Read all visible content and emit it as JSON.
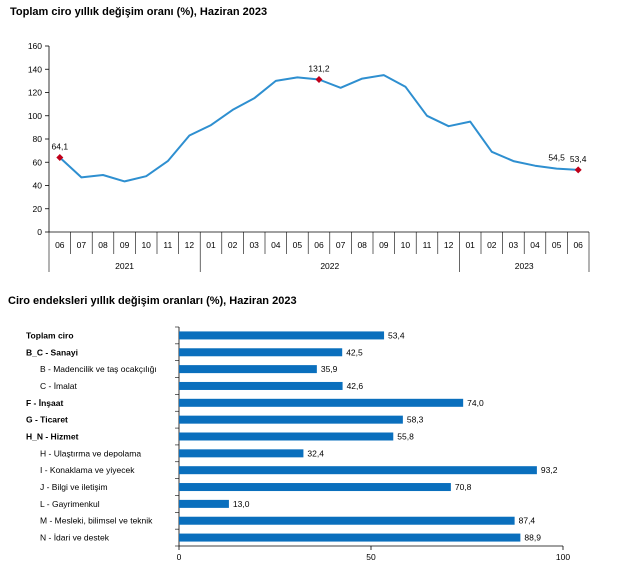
{
  "chart_data": [
    {
      "type": "line",
      "title": "Toplam ciro yıllık değişim oranı (%), Haziran 2023",
      "ylim": [
        0,
        160
      ],
      "yticks": [
        0,
        20,
        40,
        60,
        80,
        100,
        120,
        140,
        160
      ],
      "x": [
        "06",
        "07",
        "08",
        "09",
        "10",
        "11",
        "12",
        "01",
        "02",
        "03",
        "04",
        "05",
        "06",
        "07",
        "08",
        "09",
        "10",
        "11",
        "12",
        "01",
        "02",
        "03",
        "04",
        "05",
        "06"
      ],
      "years": [
        {
          "label": "2021",
          "start": 0,
          "end": 6
        },
        {
          "label": "2022",
          "start": 7,
          "end": 18
        },
        {
          "label": "2023",
          "start": 19,
          "end": 24
        }
      ],
      "values": [
        64.1,
        47,
        49,
        43.5,
        48,
        61,
        83,
        92,
        105,
        115,
        130,
        133,
        131.2,
        124,
        132,
        135,
        125,
        100,
        91,
        95,
        69,
        61,
        57,
        54.5,
        53.4
      ],
      "data_labels": [
        {
          "index": 0,
          "text": "64,1"
        },
        {
          "index": 12,
          "text": "131,2"
        },
        {
          "index": 23,
          "text": "54,5"
        },
        {
          "index": 24,
          "text": "53,4"
        }
      ],
      "marked_points": [
        0,
        12,
        24
      ],
      "colors": {
        "line": "#2e8fd0",
        "marker": "#c0001a"
      },
      "grid": false
    },
    {
      "type": "bar",
      "orientation": "horizontal",
      "title": "Ciro endeksleri yıllık değişim oranları (%), Haziran 2023",
      "xlim": [
        0,
        100
      ],
      "xticks": [
        0,
        50,
        100
      ],
      "categories": [
        "Toplam ciro",
        "B_C - Sanayi",
        "B - Madencilik ve taş ocakçılığı",
        "C - İmalat",
        "F - İnşaat",
        "G - Ticaret",
        "H_N - Hizmet",
        "H - Ulaştırma ve depolama",
        "I - Konaklama ve yiyecek",
        "J - Bilgi ve iletişim",
        "L - Gayrimenkul",
        "M - Mesleki, bilimsel ve teknik",
        "N - İdari ve destek"
      ],
      "bold": [
        true,
        true,
        false,
        false,
        true,
        true,
        true,
        false,
        false,
        false,
        false,
        false,
        false
      ],
      "values": [
        53.4,
        42.5,
        35.9,
        42.6,
        74.0,
        58.3,
        55.8,
        32.4,
        93.2,
        70.8,
        13.0,
        87.4,
        88.9
      ],
      "value_labels": [
        "53,4",
        "42,5",
        "35,9",
        "42,6",
        "74,0",
        "58,3",
        "55,8",
        "32,4",
        "93,2",
        "70,8",
        "13,0",
        "87,4",
        "88,9"
      ],
      "colors": {
        "bar": "#0a6fbd"
      },
      "grid": false
    }
  ]
}
